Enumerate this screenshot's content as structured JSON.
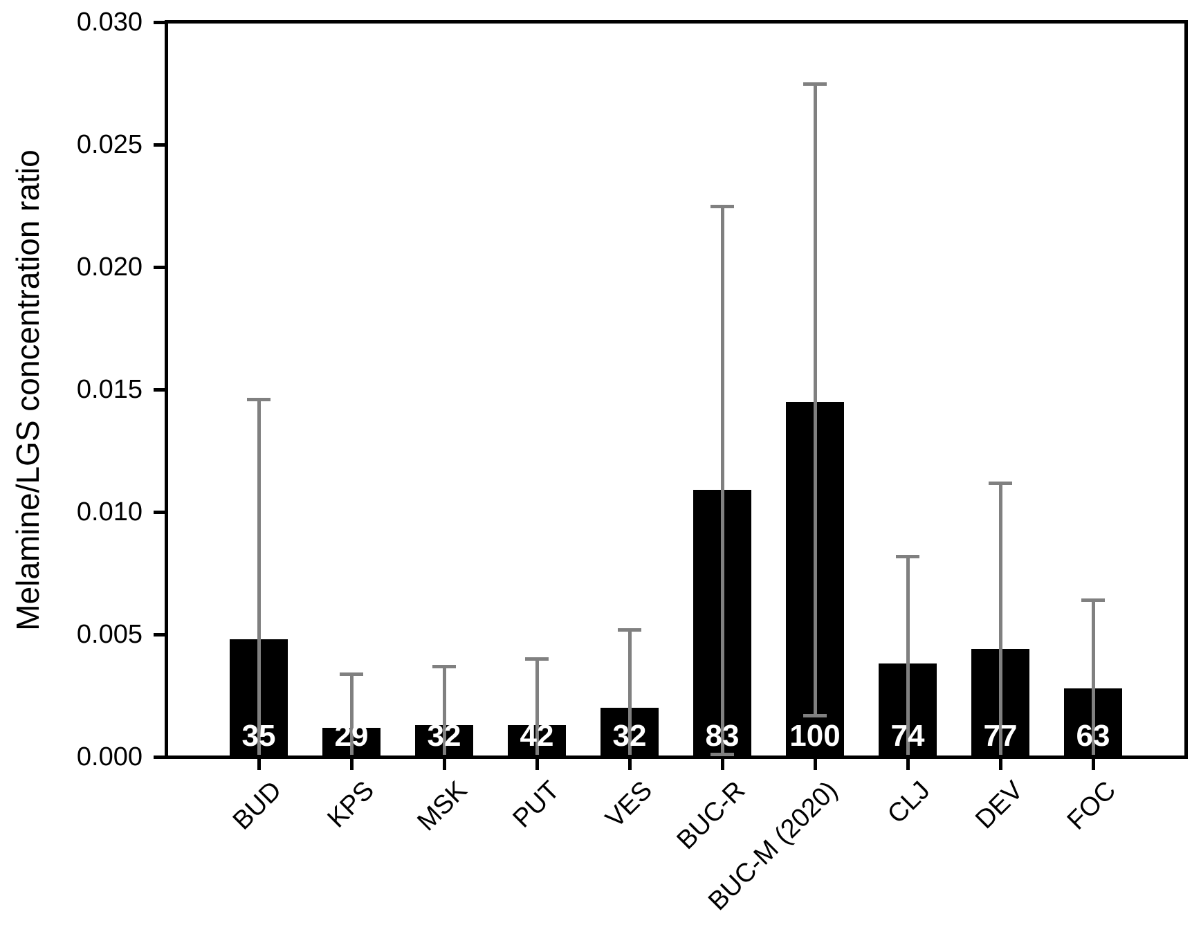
{
  "figure": {
    "background_color": "#ffffff",
    "frame_color": "#000000",
    "bar_color": "#000000",
    "error_bar_color": "#808080",
    "bar_label_color": "#ffffff"
  },
  "chart_data": {
    "type": "bar",
    "title": "",
    "xlabel": "",
    "ylabel": "Melamine/LGS concentration ratio",
    "ylim": [
      0.0,
      0.03
    ],
    "ytick_interval": 0.005,
    "ytick_labels": [
      "0.000",
      "0.005",
      "0.010",
      "0.015",
      "0.020",
      "0.025",
      "0.030"
    ],
    "grid": false,
    "legend": false,
    "x_tick_label_rotation_deg": 45,
    "frame": "full-box",
    "categories": [
      "BUD",
      "KPS",
      "MSK",
      "PUT",
      "VES",
      "BUC-R",
      "BUC-M (2020)",
      "CLJ",
      "DEV",
      "FOC"
    ],
    "series": [
      {
        "name": "Melamine/LGS concentration ratio",
        "values": [
          0.0048,
          0.0012,
          0.0013,
          0.0013,
          0.002,
          0.0109,
          0.0145,
          0.0038,
          0.0044,
          0.0028
        ],
        "error_upper_tip": [
          0.0146,
          0.0034,
          0.0037,
          0.004,
          0.0052,
          0.0225,
          0.0275,
          0.0082,
          0.0112,
          0.0064
        ],
        "error_lower_tip": [
          0,
          0,
          0,
          0,
          0,
          0.0001,
          0.0017,
          0,
          0,
          0
        ],
        "lower_cap_visible": [
          false,
          false,
          false,
          false,
          false,
          true,
          true,
          false,
          false,
          false
        ],
        "bar_labels": [
          "35",
          "29",
          "32",
          "42",
          "32",
          "83",
          "100",
          "74",
          "77",
          "63"
        ]
      }
    ]
  }
}
